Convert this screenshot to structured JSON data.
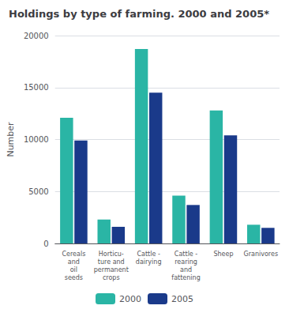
{
  "chart_data": {
    "type": "bar",
    "title": "Holdings by type of farming. 2000 and 2005*",
    "ylabel": "Number",
    "categories": [
      "Cereals\nand\noil\nseeds",
      "Horticu-\nture and\npermanent\ncrops",
      "Cattle -\ndairying",
      "Cattle -\nrearing\nand\nfattening",
      "Sheep",
      "Granivores"
    ],
    "series": [
      {
        "name": "2000",
        "color": "#2ab5a5",
        "values": [
          12100,
          2300,
          18700,
          4600,
          12800,
          1800
        ]
      },
      {
        "name": "2005",
        "color": "#1a3a8a",
        "values": [
          9900,
          1600,
          14500,
          3700,
          10400,
          1500
        ]
      }
    ],
    "ylim": [
      0,
      20000
    ],
    "yticks": [
      0,
      5000,
      10000,
      15000,
      20000
    ],
    "grid": true,
    "legend": "bottom"
  }
}
